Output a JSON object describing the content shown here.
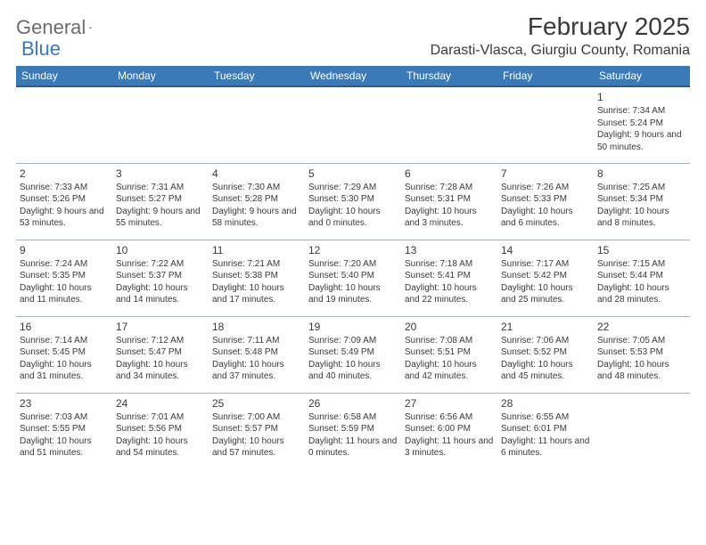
{
  "logo": {
    "part1": "General",
    "part2": "Blue"
  },
  "title": "February 2025",
  "location": "Darasti-Vlasca, Giurgiu County, Romania",
  "colors": {
    "header_bg": "#3a7ab8",
    "header_border": "#2f5c8a",
    "cell_border": "#9db6ce",
    "text": "#3a3a3a",
    "logo_gray": "#6b6b6b",
    "logo_blue": "#3a7ab8",
    "bg": "#ffffff"
  },
  "typography": {
    "title_fontsize": 28,
    "location_fontsize": 16,
    "dayheader_fontsize": 12,
    "daynum_fontsize": 12,
    "body_fontsize": 10
  },
  "day_headers": [
    "Sunday",
    "Monday",
    "Tuesday",
    "Wednesday",
    "Thursday",
    "Friday",
    "Saturday"
  ],
  "weeks": [
    [
      null,
      null,
      null,
      null,
      null,
      null,
      {
        "n": "1",
        "sunrise": "7:34 AM",
        "sunset": "5:24 PM",
        "daylight": "9 hours and 50 minutes."
      }
    ],
    [
      {
        "n": "2",
        "sunrise": "7:33 AM",
        "sunset": "5:26 PM",
        "daylight": "9 hours and 53 minutes."
      },
      {
        "n": "3",
        "sunrise": "7:31 AM",
        "sunset": "5:27 PM",
        "daylight": "9 hours and 55 minutes."
      },
      {
        "n": "4",
        "sunrise": "7:30 AM",
        "sunset": "5:28 PM",
        "daylight": "9 hours and 58 minutes."
      },
      {
        "n": "5",
        "sunrise": "7:29 AM",
        "sunset": "5:30 PM",
        "daylight": "10 hours and 0 minutes."
      },
      {
        "n": "6",
        "sunrise": "7:28 AM",
        "sunset": "5:31 PM",
        "daylight": "10 hours and 3 minutes."
      },
      {
        "n": "7",
        "sunrise": "7:26 AM",
        "sunset": "5:33 PM",
        "daylight": "10 hours and 6 minutes."
      },
      {
        "n": "8",
        "sunrise": "7:25 AM",
        "sunset": "5:34 PM",
        "daylight": "10 hours and 8 minutes."
      }
    ],
    [
      {
        "n": "9",
        "sunrise": "7:24 AM",
        "sunset": "5:35 PM",
        "daylight": "10 hours and 11 minutes."
      },
      {
        "n": "10",
        "sunrise": "7:22 AM",
        "sunset": "5:37 PM",
        "daylight": "10 hours and 14 minutes."
      },
      {
        "n": "11",
        "sunrise": "7:21 AM",
        "sunset": "5:38 PM",
        "daylight": "10 hours and 17 minutes."
      },
      {
        "n": "12",
        "sunrise": "7:20 AM",
        "sunset": "5:40 PM",
        "daylight": "10 hours and 19 minutes."
      },
      {
        "n": "13",
        "sunrise": "7:18 AM",
        "sunset": "5:41 PM",
        "daylight": "10 hours and 22 minutes."
      },
      {
        "n": "14",
        "sunrise": "7:17 AM",
        "sunset": "5:42 PM",
        "daylight": "10 hours and 25 minutes."
      },
      {
        "n": "15",
        "sunrise": "7:15 AM",
        "sunset": "5:44 PM",
        "daylight": "10 hours and 28 minutes."
      }
    ],
    [
      {
        "n": "16",
        "sunrise": "7:14 AM",
        "sunset": "5:45 PM",
        "daylight": "10 hours and 31 minutes."
      },
      {
        "n": "17",
        "sunrise": "7:12 AM",
        "sunset": "5:47 PM",
        "daylight": "10 hours and 34 minutes."
      },
      {
        "n": "18",
        "sunrise": "7:11 AM",
        "sunset": "5:48 PM",
        "daylight": "10 hours and 37 minutes."
      },
      {
        "n": "19",
        "sunrise": "7:09 AM",
        "sunset": "5:49 PM",
        "daylight": "10 hours and 40 minutes."
      },
      {
        "n": "20",
        "sunrise": "7:08 AM",
        "sunset": "5:51 PM",
        "daylight": "10 hours and 42 minutes."
      },
      {
        "n": "21",
        "sunrise": "7:06 AM",
        "sunset": "5:52 PM",
        "daylight": "10 hours and 45 minutes."
      },
      {
        "n": "22",
        "sunrise": "7:05 AM",
        "sunset": "5:53 PM",
        "daylight": "10 hours and 48 minutes."
      }
    ],
    [
      {
        "n": "23",
        "sunrise": "7:03 AM",
        "sunset": "5:55 PM",
        "daylight": "10 hours and 51 minutes."
      },
      {
        "n": "24",
        "sunrise": "7:01 AM",
        "sunset": "5:56 PM",
        "daylight": "10 hours and 54 minutes."
      },
      {
        "n": "25",
        "sunrise": "7:00 AM",
        "sunset": "5:57 PM",
        "daylight": "10 hours and 57 minutes."
      },
      {
        "n": "26",
        "sunrise": "6:58 AM",
        "sunset": "5:59 PM",
        "daylight": "11 hours and 0 minutes."
      },
      {
        "n": "27",
        "sunrise": "6:56 AM",
        "sunset": "6:00 PM",
        "daylight": "11 hours and 3 minutes."
      },
      {
        "n": "28",
        "sunrise": "6:55 AM",
        "sunset": "6:01 PM",
        "daylight": "11 hours and 6 minutes."
      },
      null
    ]
  ],
  "labels": {
    "sunrise": "Sunrise:",
    "sunset": "Sunset:",
    "daylight": "Daylight:"
  }
}
